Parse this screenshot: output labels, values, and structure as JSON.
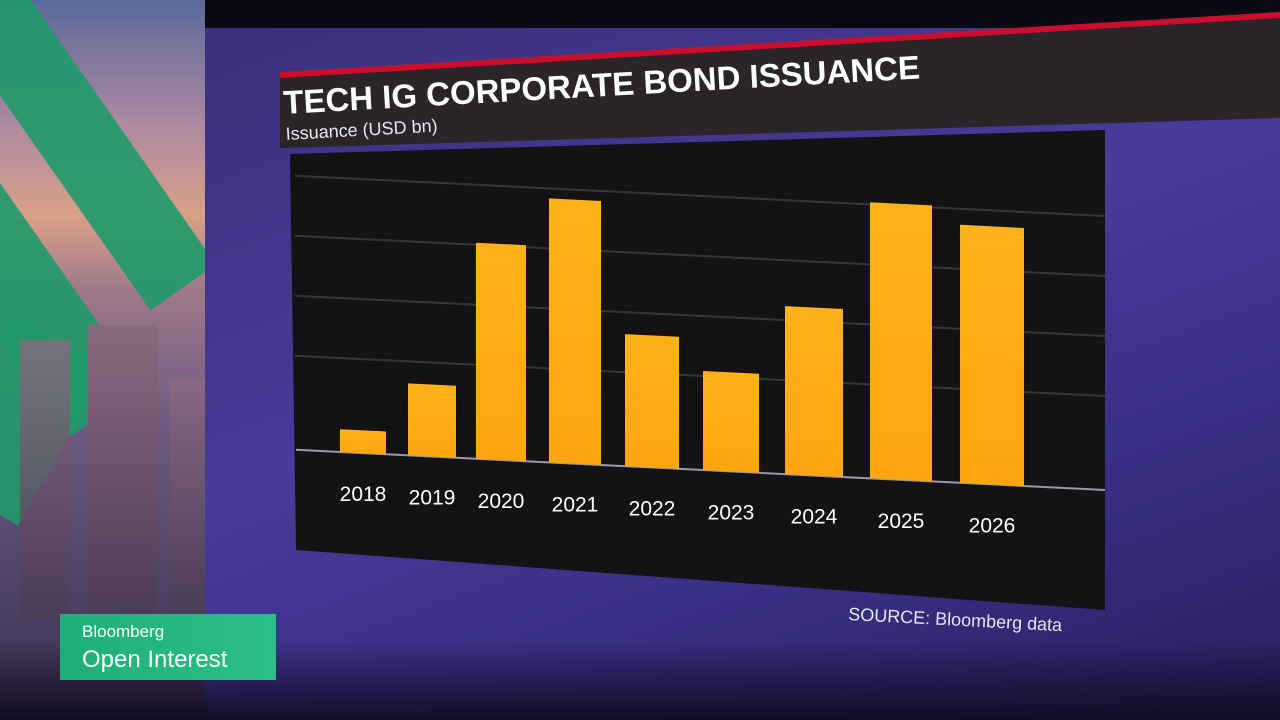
{
  "chart_data": {
    "type": "bar",
    "title": "TECH IG CORPORATE BOND ISSUANCE",
    "subtitle": "Issuance (USD bn)",
    "categories": [
      "2018",
      "2019",
      "2020",
      "2021",
      "2022",
      "2023",
      "2024",
      "2025",
      "2026"
    ],
    "values": [
      3.8,
      12,
      36,
      44,
      22,
      16.5,
      28,
      46,
      43
    ],
    "ylim": [
      0,
      50
    ],
    "grid": true,
    "bar_color": "#FFA510",
    "source": "SOURCE: Bloomberg data"
  },
  "branding": {
    "network": "Bloomberg",
    "show": "Open Interest",
    "accent_color": "#22B07E"
  },
  "colors": {
    "title_bar": "#2A2528",
    "title_accent": "#C8102E",
    "plot_background": "#141214"
  }
}
